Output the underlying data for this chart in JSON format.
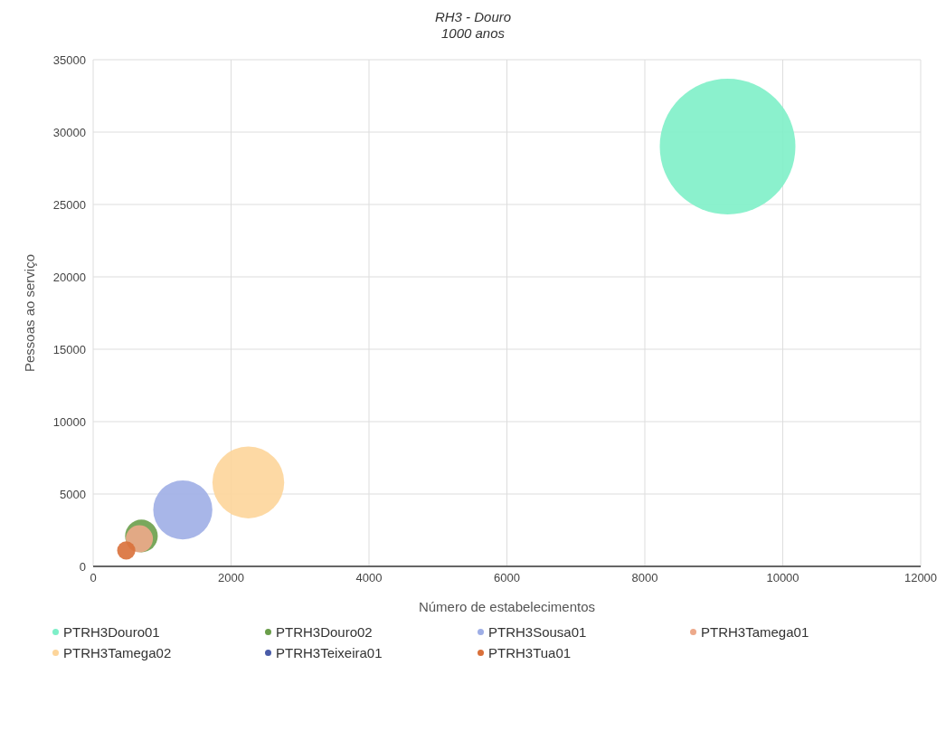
{
  "chart_data": {
    "type": "bubble",
    "title": "RH3 - Douro",
    "subtitle": "1000 anos",
    "xlabel": "Número de estabelecimentos",
    "ylabel": "Pessoas ao serviço",
    "xlim": [
      0,
      12000
    ],
    "xticks": [
      0,
      2000,
      4000,
      6000,
      8000,
      10000,
      12000
    ],
    "ylim": [
      0,
      35000
    ],
    "yticks": [
      0,
      5000,
      10000,
      15000,
      20000,
      25000,
      30000,
      35000
    ],
    "grid": true,
    "legend": "bottom",
    "marker": "circle",
    "series": [
      {
        "name": "PTRH3Douro01",
        "color": "#7eefc8",
        "x": [
          9200
        ],
        "values": [
          29000
        ],
        "sizes": [
          1
        ]
      },
      {
        "name": "PTRH3Douro02",
        "color": "#6a9e4a",
        "x": [
          700
        ],
        "values": [
          2100
        ],
        "sizes": [
          0.058
        ]
      },
      {
        "name": "PTRH3Sousa01",
        "color": "#9eaee6",
        "x": [
          1300
        ],
        "values": [
          3900
        ],
        "sizes": [
          0.19
        ]
      },
      {
        "name": "PTRH3Tamega01",
        "color": "#eda98a",
        "x": [
          670
        ],
        "values": [
          1900
        ],
        "sizes": [
          0.04
        ]
      },
      {
        "name": "PTRH3Tamega02",
        "color": "#fdd59a",
        "x": [
          2250
        ],
        "values": [
          5800
        ],
        "sizes": [
          0.28
        ]
      },
      {
        "name": "PTRH3Teixeira01",
        "color": "#4a5ca8",
        "x": [
          null
        ],
        "values": [
          null
        ],
        "sizes": [
          null
        ]
      },
      {
        "name": "PTRH3Tua01",
        "color": "#d9703a",
        "x": [
          480
        ],
        "values": [
          1100
        ],
        "sizes": [
          0.018
        ]
      }
    ]
  }
}
